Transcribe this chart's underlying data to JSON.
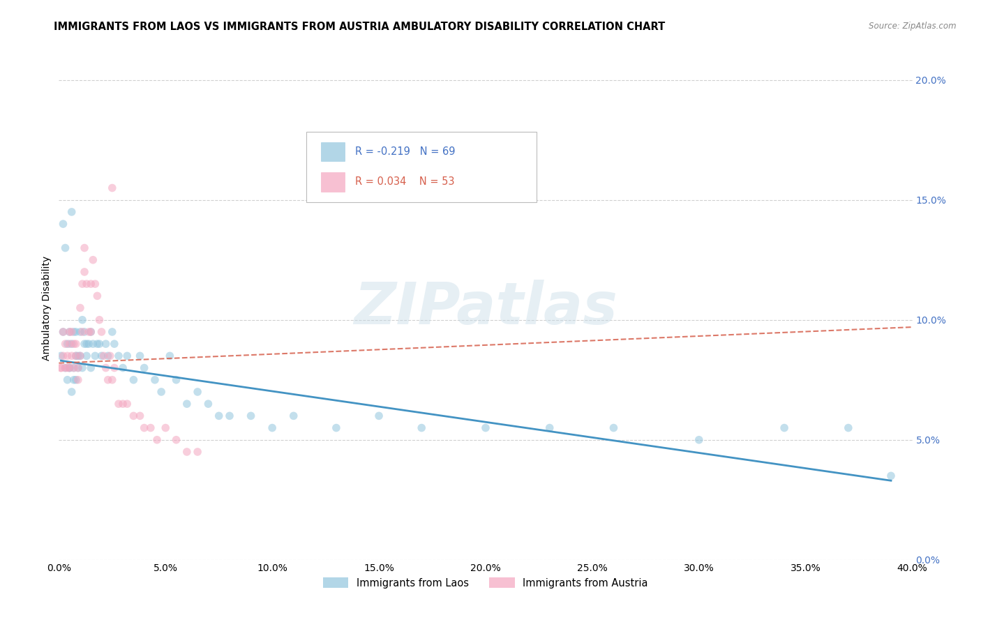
{
  "title": "IMMIGRANTS FROM LAOS VS IMMIGRANTS FROM AUSTRIA AMBULATORY DISABILITY CORRELATION CHART",
  "source": "Source: ZipAtlas.com",
  "ylabel": "Ambulatory Disability",
  "legend_label_1": "Immigrants from Laos",
  "legend_label_2": "Immigrants from Austria",
  "R1": -0.219,
  "N1": 69,
  "R2": 0.034,
  "N2": 53,
  "color1": "#92c5de",
  "color2": "#f4a6c0",
  "trendline1_color": "#4393c3",
  "trendline2_color": "#d6604d",
  "background_color": "#ffffff",
  "xlim": [
    0.0,
    0.4
  ],
  "ylim": [
    0.0,
    0.21
  ],
  "xticks": [
    0.0,
    0.05,
    0.1,
    0.15,
    0.2,
    0.25,
    0.3,
    0.35,
    0.4
  ],
  "yticks_right": [
    0.0,
    0.05,
    0.1,
    0.15,
    0.2
  ],
  "laos_x": [
    0.001,
    0.002,
    0.002,
    0.003,
    0.003,
    0.004,
    0.004,
    0.005,
    0.005,
    0.005,
    0.006,
    0.006,
    0.006,
    0.007,
    0.007,
    0.007,
    0.008,
    0.008,
    0.008,
    0.009,
    0.009,
    0.01,
    0.01,
    0.011,
    0.011,
    0.012,
    0.012,
    0.013,
    0.013,
    0.014,
    0.015,
    0.015,
    0.016,
    0.017,
    0.018,
    0.019,
    0.02,
    0.022,
    0.023,
    0.025,
    0.026,
    0.028,
    0.03,
    0.032,
    0.035,
    0.038,
    0.04,
    0.045,
    0.048,
    0.052,
    0.055,
    0.06,
    0.065,
    0.07,
    0.075,
    0.08,
    0.09,
    0.1,
    0.11,
    0.13,
    0.15,
    0.17,
    0.2,
    0.23,
    0.26,
    0.3,
    0.34,
    0.37,
    0.39
  ],
  "laos_y": [
    0.085,
    0.14,
    0.095,
    0.13,
    0.08,
    0.09,
    0.075,
    0.095,
    0.08,
    0.08,
    0.07,
    0.09,
    0.145,
    0.075,
    0.095,
    0.08,
    0.085,
    0.075,
    0.095,
    0.08,
    0.085,
    0.095,
    0.085,
    0.1,
    0.08,
    0.095,
    0.09,
    0.09,
    0.085,
    0.09,
    0.095,
    0.08,
    0.09,
    0.085,
    0.09,
    0.09,
    0.085,
    0.09,
    0.085,
    0.095,
    0.09,
    0.085,
    0.08,
    0.085,
    0.075,
    0.085,
    0.08,
    0.075,
    0.07,
    0.085,
    0.075,
    0.065,
    0.07,
    0.065,
    0.06,
    0.06,
    0.06,
    0.055,
    0.06,
    0.055,
    0.06,
    0.055,
    0.055,
    0.055,
    0.055,
    0.05,
    0.055,
    0.055,
    0.035
  ],
  "austria_x": [
    0.001,
    0.001,
    0.002,
    0.002,
    0.003,
    0.003,
    0.004,
    0.004,
    0.005,
    0.005,
    0.005,
    0.006,
    0.006,
    0.007,
    0.007,
    0.008,
    0.008,
    0.009,
    0.009,
    0.01,
    0.01,
    0.011,
    0.011,
    0.012,
    0.012,
    0.013,
    0.014,
    0.015,
    0.015,
    0.016,
    0.017,
    0.018,
    0.019,
    0.02,
    0.021,
    0.022,
    0.023,
    0.024,
    0.025,
    0.026,
    0.028,
    0.03,
    0.032,
    0.035,
    0.038,
    0.04,
    0.043,
    0.046,
    0.05,
    0.055,
    0.06,
    0.065,
    0.025
  ],
  "austria_y": [
    0.08,
    0.08,
    0.085,
    0.095,
    0.09,
    0.08,
    0.085,
    0.08,
    0.09,
    0.095,
    0.08,
    0.085,
    0.095,
    0.09,
    0.08,
    0.09,
    0.085,
    0.08,
    0.075,
    0.085,
    0.105,
    0.115,
    0.095,
    0.13,
    0.12,
    0.115,
    0.095,
    0.095,
    0.115,
    0.125,
    0.115,
    0.11,
    0.1,
    0.095,
    0.085,
    0.08,
    0.075,
    0.085,
    0.075,
    0.08,
    0.065,
    0.065,
    0.065,
    0.06,
    0.06,
    0.055,
    0.055,
    0.05,
    0.055,
    0.05,
    0.045,
    0.045,
    0.155
  ],
  "trendline1_x": [
    0.001,
    0.39
  ],
  "trendline1_y": [
    0.083,
    0.033
  ],
  "trendline2_x": [
    0.0,
    0.4
  ],
  "trendline2_y": [
    0.082,
    0.097
  ],
  "watermark_text": "ZIPatlas",
  "marker_size": 70,
  "marker_alpha": 0.55,
  "grid_color": "#d0d0d0",
  "right_axis_color": "#4472c4",
  "title_fontsize": 10.5,
  "axis_label_fontsize": 10,
  "tick_fontsize": 10
}
